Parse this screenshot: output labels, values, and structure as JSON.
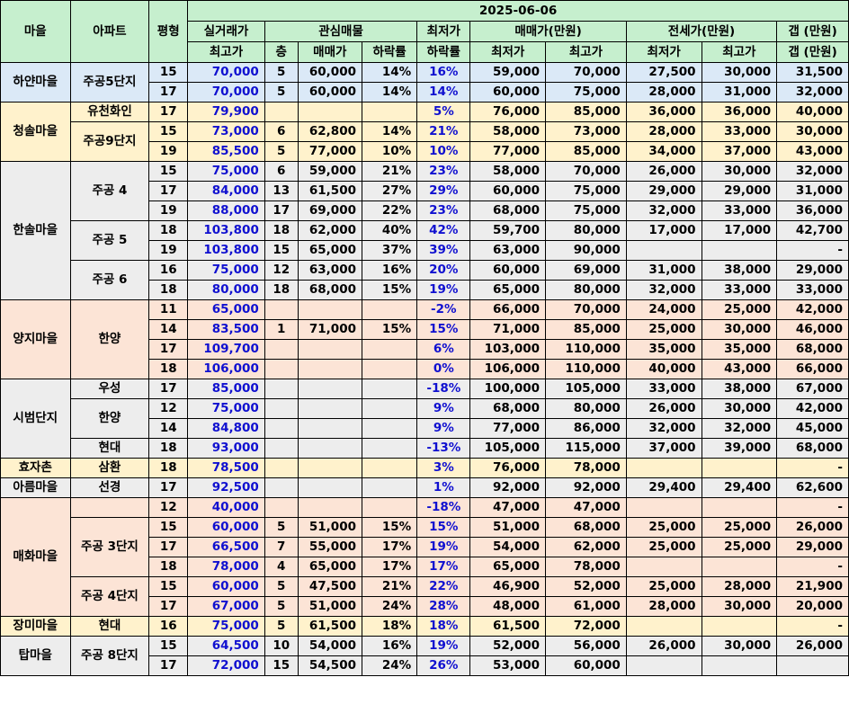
{
  "header": {
    "date": "2025-06-06",
    "village": "마을",
    "apartment": "아파트",
    "pyeong": "평형",
    "actual_top": "실거래가",
    "actual_bottom": "최고가",
    "interest": "관심매물",
    "floor": "층",
    "sale_price": "매매가",
    "drop_rate": "하락률",
    "min_top": "최저가",
    "min_bottom": "하락률",
    "sale_group": "매매가(만원)",
    "lease_group": "전세가(만원)",
    "min_price": "최저가",
    "max_price": "최고가",
    "gap": "갭 (만원)"
  },
  "rows": [
    {
      "village": "하얀마을",
      "apt": "주공5단지",
      "py": "15",
      "actual": "70,000",
      "floor": "5",
      "sale": "60,000",
      "drop": "14%",
      "mindrop": "16%",
      "smin": "59,000",
      "smax": "70,000",
      "lmin": "27,500",
      "lmax": "30,000",
      "gap": "31,500"
    },
    {
      "village": "",
      "apt": "",
      "py": "17",
      "actual": "70,000",
      "floor": "5",
      "sale": "60,000",
      "drop": "14%",
      "mindrop": "14%",
      "smin": "60,000",
      "smax": "75,000",
      "lmin": "28,000",
      "lmax": "31,000",
      "gap": "32,000"
    },
    {
      "village": "청솔마을",
      "apt": "유천화인",
      "py": "17",
      "actual": "79,900",
      "floor": "",
      "sale": "",
      "drop": "",
      "mindrop": "5%",
      "smin": "76,000",
      "smax": "85,000",
      "lmin": "36,000",
      "lmax": "36,000",
      "gap": "40,000"
    },
    {
      "village": "",
      "apt": "주공9단지",
      "py": "15",
      "actual": "73,000",
      "floor": "6",
      "sale": "62,800",
      "drop": "14%",
      "mindrop": "21%",
      "smin": "58,000",
      "smax": "73,000",
      "lmin": "28,000",
      "lmax": "33,000",
      "gap": "30,000"
    },
    {
      "village": "",
      "apt": "",
      "py": "19",
      "actual": "85,500",
      "floor": "5",
      "sale": "77,000",
      "drop": "10%",
      "mindrop": "10%",
      "smin": "77,000",
      "smax": "85,000",
      "lmin": "34,000",
      "lmax": "37,000",
      "gap": "43,000"
    },
    {
      "village": "한솔마을",
      "apt": "주공 4",
      "py": "15",
      "actual": "75,000",
      "floor": "6",
      "sale": "59,000",
      "drop": "21%",
      "mindrop": "23%",
      "smin": "58,000",
      "smax": "70,000",
      "lmin": "26,000",
      "lmax": "30,000",
      "gap": "32,000"
    },
    {
      "village": "",
      "apt": "",
      "py": "17",
      "actual": "84,000",
      "floor": "13",
      "sale": "61,500",
      "drop": "27%",
      "mindrop": "29%",
      "smin": "60,000",
      "smax": "75,000",
      "lmin": "29,000",
      "lmax": "29,000",
      "gap": "31,000"
    },
    {
      "village": "",
      "apt": "",
      "py": "19",
      "actual": "88,000",
      "floor": "17",
      "sale": "69,000",
      "drop": "22%",
      "mindrop": "23%",
      "smin": "68,000",
      "smax": "75,000",
      "lmin": "32,000",
      "lmax": "33,000",
      "gap": "36,000"
    },
    {
      "village": "",
      "apt": "주공 5",
      "py": "18",
      "actual": "103,800",
      "floor": "18",
      "sale": "62,000",
      "drop": "40%",
      "mindrop": "42%",
      "smin": "59,700",
      "smax": "80,000",
      "lmin": "17,000",
      "lmax": "17,000",
      "gap": "42,700"
    },
    {
      "village": "",
      "apt": "",
      "py": "19",
      "actual": "103,800",
      "floor": "15",
      "sale": "65,000",
      "drop": "37%",
      "mindrop": "39%",
      "smin": "63,000",
      "smax": "90,000",
      "lmin": "",
      "lmax": "",
      "gap": "-"
    },
    {
      "village": "",
      "apt": "주공 6",
      "py": "16",
      "actual": "75,000",
      "floor": "12",
      "sale": "63,000",
      "drop": "16%",
      "mindrop": "20%",
      "smin": "60,000",
      "smax": "69,000",
      "lmin": "31,000",
      "lmax": "38,000",
      "gap": "29,000"
    },
    {
      "village": "",
      "apt": "",
      "py": "18",
      "actual": "80,000",
      "floor": "18",
      "sale": "68,000",
      "drop": "15%",
      "mindrop": "19%",
      "smin": "65,000",
      "smax": "80,000",
      "lmin": "32,000",
      "lmax": "33,000",
      "gap": "33,000"
    },
    {
      "village": "양지마을",
      "apt": "한양",
      "py": "11",
      "actual": "65,000",
      "floor": "",
      "sale": "",
      "drop": "",
      "mindrop": "-2%",
      "smin": "66,000",
      "smax": "70,000",
      "lmin": "24,000",
      "lmax": "25,000",
      "gap": "42,000"
    },
    {
      "village": "",
      "apt": "",
      "py": "14",
      "actual": "83,500",
      "floor": "1",
      "sale": "71,000",
      "drop": "15%",
      "mindrop": "15%",
      "smin": "71,000",
      "smax": "85,000",
      "lmin": "25,000",
      "lmax": "30,000",
      "gap": "46,000"
    },
    {
      "village": "",
      "apt": "",
      "py": "17",
      "actual": "109,700",
      "floor": "",
      "sale": "",
      "drop": "",
      "mindrop": "6%",
      "smin": "103,000",
      "smax": "110,000",
      "lmin": "35,000",
      "lmax": "35,000",
      "gap": "68,000"
    },
    {
      "village": "",
      "apt": "",
      "py": "18",
      "actual": "106,000",
      "floor": "",
      "sale": "",
      "drop": "",
      "mindrop": "0%",
      "smin": "106,000",
      "smax": "110,000",
      "lmin": "40,000",
      "lmax": "43,000",
      "gap": "66,000"
    },
    {
      "village": "시범단지",
      "apt": "우성",
      "py": "17",
      "actual": "85,000",
      "floor": "",
      "sale": "",
      "drop": "",
      "mindrop": "-18%",
      "smin": "100,000",
      "smax": "105,000",
      "lmin": "33,000",
      "lmax": "38,000",
      "gap": "67,000"
    },
    {
      "village": "",
      "apt": "한양",
      "py": "12",
      "actual": "75,000",
      "floor": "",
      "sale": "",
      "drop": "",
      "mindrop": "9%",
      "smin": "68,000",
      "smax": "80,000",
      "lmin": "26,000",
      "lmax": "30,000",
      "gap": "42,000"
    },
    {
      "village": "",
      "apt": "",
      "py": "14",
      "actual": "84,800",
      "floor": "",
      "sale": "",
      "drop": "",
      "mindrop": "9%",
      "smin": "77,000",
      "smax": "86,000",
      "lmin": "32,000",
      "lmax": "32,000",
      "gap": "45,000"
    },
    {
      "village": "",
      "apt": "현대",
      "py": "18",
      "actual": "93,000",
      "floor": "",
      "sale": "",
      "drop": "",
      "mindrop": "-13%",
      "smin": "105,000",
      "smax": "115,000",
      "lmin": "37,000",
      "lmax": "39,000",
      "gap": "68,000"
    },
    {
      "village": "효자촌",
      "apt": "삼환",
      "py": "18",
      "actual": "78,500",
      "floor": "",
      "sale": "",
      "drop": "",
      "mindrop": "3%",
      "smin": "76,000",
      "smax": "78,000",
      "lmin": "",
      "lmax": "",
      "gap": "-"
    },
    {
      "village": "아름마을",
      "apt": "선경",
      "py": "17",
      "actual": "92,500",
      "floor": "",
      "sale": "",
      "drop": "",
      "mindrop": "1%",
      "smin": "92,000",
      "smax": "92,000",
      "lmin": "29,400",
      "lmax": "29,400",
      "gap": "62,600"
    },
    {
      "village": "매화마을",
      "apt": "",
      "py": "12",
      "actual": "40,000",
      "floor": "",
      "sale": "",
      "drop": "",
      "mindrop": "-18%",
      "smin": "47,000",
      "smax": "47,000",
      "lmin": "",
      "lmax": "",
      "gap": "-"
    },
    {
      "village": "",
      "apt": "주공 3단지",
      "py": "15",
      "actual": "60,000",
      "floor": "5",
      "sale": "51,000",
      "drop": "15%",
      "mindrop": "15%",
      "smin": "51,000",
      "smax": "68,000",
      "lmin": "25,000",
      "lmax": "25,000",
      "gap": "26,000"
    },
    {
      "village": "",
      "apt": "",
      "py": "17",
      "actual": "66,500",
      "floor": "7",
      "sale": "55,000",
      "drop": "17%",
      "mindrop": "19%",
      "smin": "54,000",
      "smax": "62,000",
      "lmin": "25,000",
      "lmax": "25,000",
      "gap": "29,000"
    },
    {
      "village": "",
      "apt": "",
      "py": "18",
      "actual": "78,000",
      "floor": "4",
      "sale": "65,000",
      "drop": "17%",
      "mindrop": "17%",
      "smin": "65,000",
      "smax": "78,000",
      "lmin": "",
      "lmax": "",
      "gap": "-"
    },
    {
      "village": "",
      "apt": "주공 4단지",
      "py": "15",
      "actual": "60,000",
      "floor": "5",
      "sale": "47,500",
      "drop": "21%",
      "mindrop": "22%",
      "smin": "46,900",
      "smax": "52,000",
      "lmin": "25,000",
      "lmax": "28,000",
      "gap": "21,900"
    },
    {
      "village": "",
      "apt": "",
      "py": "17",
      "actual": "67,000",
      "floor": "5",
      "sale": "51,000",
      "drop": "24%",
      "mindrop": "28%",
      "smin": "48,000",
      "smax": "61,000",
      "lmin": "28,000",
      "lmax": "30,000",
      "gap": "20,000"
    },
    {
      "village": "장미마을",
      "apt": "현대",
      "py": "16",
      "actual": "75,000",
      "floor": "5",
      "sale": "61,500",
      "drop": "18%",
      "mindrop": "18%",
      "smin": "61,500",
      "smax": "72,000",
      "lmin": "",
      "lmax": "",
      "gap": "-"
    },
    {
      "village": "탑마을",
      "apt": "주공 8단지",
      "py": "15",
      "actual": "64,500",
      "floor": "10",
      "sale": "54,000",
      "drop": "16%",
      "mindrop": "19%",
      "smin": "52,000",
      "smax": "56,000",
      "lmin": "26,000",
      "lmax": "30,000",
      "gap": "26,000"
    },
    {
      "village": "",
      "apt": "",
      "py": "17",
      "actual": "72,000",
      "floor": "15",
      "sale": "54,500",
      "drop": "24%",
      "mindrop": "26%",
      "smin": "53,000",
      "smax": "60,000",
      "lmin": "",
      "lmax": "",
      "gap": ""
    }
  ]
}
